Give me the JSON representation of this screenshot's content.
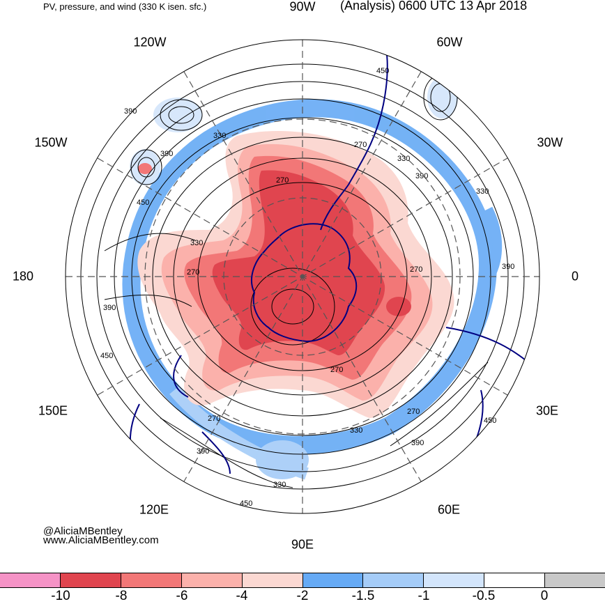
{
  "header": {
    "left_title": "PV, pressure, and wind (330 K isen. sfc.)",
    "right_title": "(Analysis) 0600 UTC 13 Apr 2018"
  },
  "map": {
    "projection": "south polar stereographic",
    "longitude_labels": [
      "90W",
      "60W",
      "30W",
      "0",
      "30E",
      "60E",
      "90E",
      "120E",
      "150E",
      "180",
      "150W",
      "120W"
    ],
    "pressure_contour_labels": [
      "270",
      "330",
      "390",
      "450"
    ],
    "colors": {
      "pv_strong_negative": "#e0454f",
      "pv_negative": "#f27777",
      "pv_weak_negative": "#fbb1ab",
      "pv_faint_negative": "#fbd8d2",
      "pv_blue_dark": "#66aaf5",
      "pv_blue_mid": "#a5ccf8",
      "pv_blue_light": "#d3e5fb",
      "coastline": "#000080"
    }
  },
  "credits": {
    "handle": "@AliciaMBentley",
    "website": "www.AliciaMBentley.com"
  },
  "colorbar": {
    "colors": [
      "#f593c6",
      "#e0454f",
      "#f27777",
      "#fbb1ab",
      "#fbd8d2",
      "#66aaf5",
      "#a5ccf8",
      "#d3e5fb",
      "#ffffff",
      "#c8c8c8"
    ],
    "tick_labels": [
      "-10",
      "-8",
      "-6",
      "-4",
      "-2",
      "-1.5",
      "-1",
      "-0.5",
      "0"
    ]
  }
}
